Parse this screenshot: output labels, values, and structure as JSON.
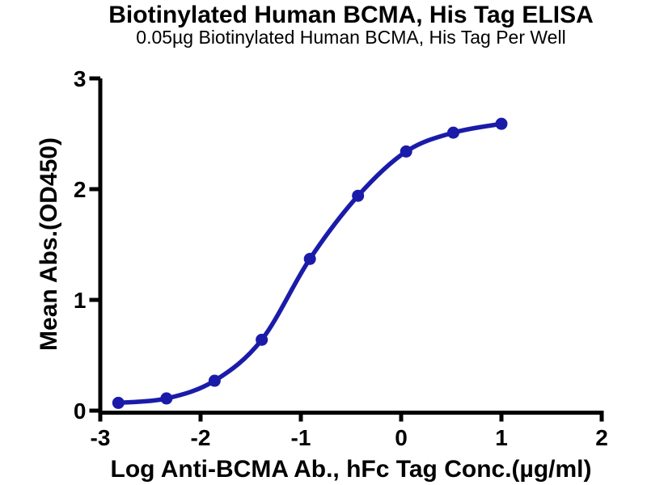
{
  "chart_data": {
    "type": "scatter",
    "title": "Biotinylated Human BCMA, His Tag ELISA",
    "subtitle": "0.05µg Biotinylated Human BCMA, His Tag Per Well",
    "xlabel": "Log Anti-BCMA Ab., hFc Tag Conc.(µg/ml)",
    "ylabel": "Mean Abs.(OD450)",
    "xlim": [
      -3,
      2
    ],
    "ylim": [
      0,
      3
    ],
    "xticks": [
      -3,
      -2,
      -1,
      0,
      1,
      2
    ],
    "yticks": [
      0,
      1,
      2,
      3
    ],
    "grid": false,
    "legend_position": "none",
    "curve": "sigmoidal-fit",
    "series": [
      {
        "color": "#1b1baa",
        "marker": "filled-circle",
        "x": [
          -2.82,
          -2.34,
          -1.86,
          -1.39,
          -0.91,
          -0.43,
          0.05,
          0.52,
          1.0
        ],
        "y": [
          0.07,
          0.11,
          0.27,
          0.64,
          1.37,
          1.94,
          2.34,
          2.51,
          2.59
        ]
      }
    ]
  },
  "colors": {
    "axis": "#000000",
    "background": "#ffffff",
    "series_blue": "#1b1baa"
  }
}
